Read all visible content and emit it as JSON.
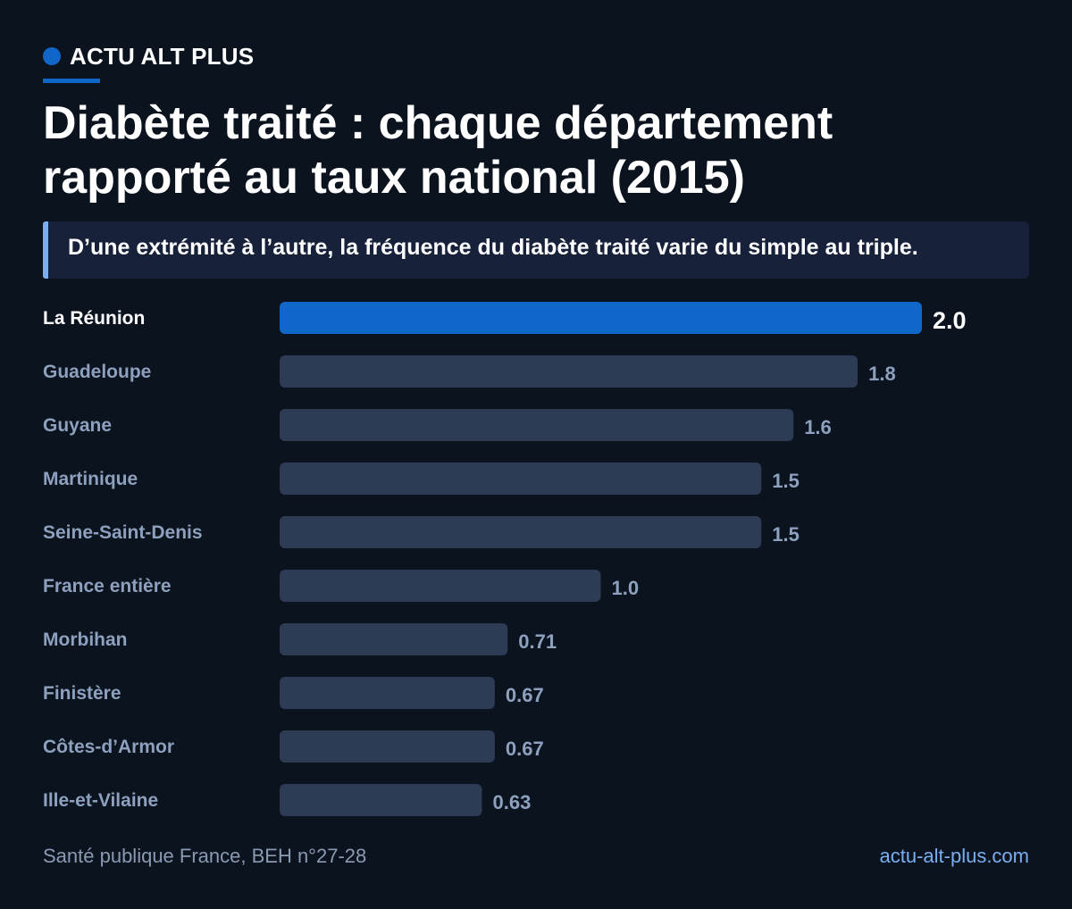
{
  "brand": {
    "name": "ACTU ALT PLUS"
  },
  "title": "Diabète traité : chaque département rapporté au taux national (2015)",
  "subtitle": "D’une extrémité à l’autre, la fréquence du diabète traité varie du simple au triple.",
  "footer": {
    "source": "Santé publique France, BEH n°27-28",
    "site": "actu-alt-plus.com"
  },
  "colors": {
    "highlight": "#1166c9",
    "bar": "#2d3b55",
    "label_muted": "#8da0bd",
    "label_highlight": "#ffffff"
  },
  "chart_data": {
    "type": "bar",
    "orientation": "horizontal",
    "categories": [
      "La Réunion",
      "Guadeloupe",
      "Guyane",
      "Martinique",
      "Seine-Saint-Denis",
      "France entière",
      "Morbihan",
      "Finistère",
      "Côtes-d’Armor",
      "Ille-et-Vilaine"
    ],
    "values": [
      2.0,
      1.8,
      1.6,
      1.5,
      1.5,
      1.0,
      0.71,
      0.67,
      0.67,
      0.63
    ],
    "value_labels": [
      "2.0",
      "1.8",
      "1.6",
      "1.5",
      "1.5",
      "1.0",
      "0.71",
      "0.67",
      "0.67",
      "0.63"
    ],
    "highlight": "La Réunion",
    "xlim": [
      0,
      2.0
    ],
    "grid": false,
    "legend": "none"
  }
}
